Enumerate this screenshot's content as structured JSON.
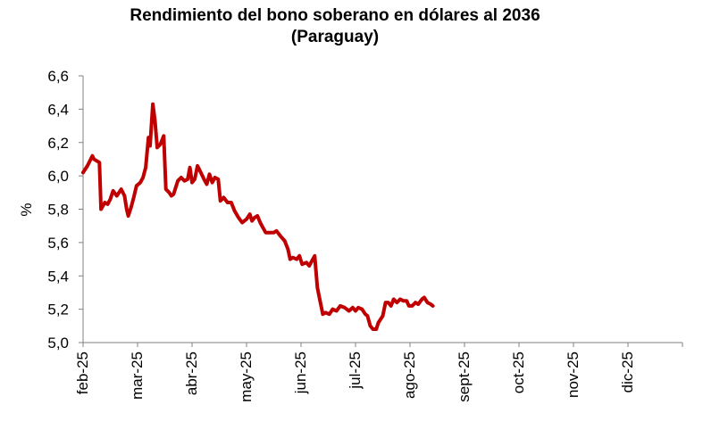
{
  "chart_data": {
    "type": "line",
    "title_line1": "Rendimiento del bono soberano en dólares al 2036",
    "title_line2": "(Paraguay)",
    "ylabel": "%",
    "xlabel": "",
    "ylim": [
      5.0,
      6.6
    ],
    "y_ticks": [
      "6,6",
      "6,4",
      "6,2",
      "6,0",
      "5,8",
      "5,6",
      "5,4",
      "5,2",
      "5,0"
    ],
    "x_ticks": [
      "feb-25",
      "mar-25",
      "abr-25",
      "may-25",
      "jun-25",
      "jul-25",
      "ago-25",
      "sept-25",
      "oct-25",
      "nov-25",
      "dic-25"
    ],
    "grid": false,
    "legend": "none",
    "line_color": "#C00000",
    "series": [
      {
        "values": [
          [
            0.0,
            6.02
          ],
          [
            0.08,
            6.06
          ],
          [
            0.17,
            6.12
          ],
          [
            0.2,
            6.1
          ],
          [
            0.25,
            6.09
          ],
          [
            0.3,
            6.08
          ],
          [
            0.33,
            5.8
          ],
          [
            0.4,
            5.84
          ],
          [
            0.45,
            5.83
          ],
          [
            0.5,
            5.86
          ],
          [
            0.55,
            5.91
          ],
          [
            0.62,
            5.88
          ],
          [
            0.7,
            5.92
          ],
          [
            0.76,
            5.88
          ],
          [
            0.8,
            5.8
          ],
          [
            0.83,
            5.76
          ],
          [
            0.88,
            5.81
          ],
          [
            0.93,
            5.87
          ],
          [
            0.98,
            5.94
          ],
          [
            1.05,
            5.96
          ],
          [
            1.1,
            5.99
          ],
          [
            1.15,
            6.05
          ],
          [
            1.2,
            6.23
          ],
          [
            1.23,
            6.18
          ],
          [
            1.28,
            6.43
          ],
          [
            1.32,
            6.33
          ],
          [
            1.36,
            6.17
          ],
          [
            1.42,
            6.19
          ],
          [
            1.48,
            6.24
          ],
          [
            1.52,
            5.92
          ],
          [
            1.58,
            5.9
          ],
          [
            1.62,
            5.88
          ],
          [
            1.66,
            5.89
          ],
          [
            1.7,
            5.93
          ],
          [
            1.74,
            5.97
          ],
          [
            1.8,
            5.99
          ],
          [
            1.86,
            5.97
          ],
          [
            1.92,
            5.98
          ],
          [
            1.96,
            6.05
          ],
          [
            2.0,
            5.96
          ],
          [
            2.05,
            5.98
          ],
          [
            2.1,
            6.06
          ],
          [
            2.16,
            6.02
          ],
          [
            2.22,
            5.98
          ],
          [
            2.27,
            5.95
          ],
          [
            2.32,
            6.01
          ],
          [
            2.37,
            5.96
          ],
          [
            2.42,
            5.99
          ],
          [
            2.48,
            5.98
          ],
          [
            2.52,
            5.85
          ],
          [
            2.58,
            5.87
          ],
          [
            2.65,
            5.84
          ],
          [
            2.72,
            5.84
          ],
          [
            2.78,
            5.79
          ],
          [
            2.85,
            5.75
          ],
          [
            2.92,
            5.72
          ],
          [
            3.0,
            5.74
          ],
          [
            3.06,
            5.77
          ],
          [
            3.1,
            5.73
          ],
          [
            3.15,
            5.75
          ],
          [
            3.2,
            5.76
          ],
          [
            3.25,
            5.72
          ],
          [
            3.3,
            5.69
          ],
          [
            3.35,
            5.66
          ],
          [
            3.42,
            5.66
          ],
          [
            3.5,
            5.66
          ],
          [
            3.55,
            5.67
          ],
          [
            3.62,
            5.64
          ],
          [
            3.7,
            5.61
          ],
          [
            3.76,
            5.56
          ],
          [
            3.8,
            5.5
          ],
          [
            3.85,
            5.51
          ],
          [
            3.92,
            5.5
          ],
          [
            3.97,
            5.52
          ],
          [
            4.02,
            5.47
          ],
          [
            4.1,
            5.48
          ],
          [
            4.15,
            5.46
          ],
          [
            4.2,
            5.49
          ],
          [
            4.25,
            5.52
          ],
          [
            4.3,
            5.33
          ],
          [
            4.35,
            5.25
          ],
          [
            4.4,
            5.17
          ],
          [
            4.45,
            5.18
          ],
          [
            4.52,
            5.17
          ],
          [
            4.58,
            5.2
          ],
          [
            4.65,
            5.19
          ],
          [
            4.72,
            5.22
          ],
          [
            4.8,
            5.21
          ],
          [
            4.88,
            5.19
          ],
          [
            4.95,
            5.21
          ],
          [
            5.0,
            5.19
          ],
          [
            5.05,
            5.21
          ],
          [
            5.12,
            5.2
          ],
          [
            5.18,
            5.17
          ],
          [
            5.22,
            5.16
          ],
          [
            5.27,
            5.1
          ],
          [
            5.32,
            5.08
          ],
          [
            5.38,
            5.08
          ],
          [
            5.42,
            5.12
          ],
          [
            5.5,
            5.16
          ],
          [
            5.55,
            5.24
          ],
          [
            5.6,
            5.24
          ],
          [
            5.65,
            5.22
          ],
          [
            5.7,
            5.26
          ],
          [
            5.76,
            5.24
          ],
          [
            5.82,
            5.26
          ],
          [
            5.88,
            5.25
          ],
          [
            5.94,
            5.25
          ],
          [
            5.98,
            5.22
          ],
          [
            6.04,
            5.22
          ],
          [
            6.1,
            5.24
          ],
          [
            6.15,
            5.23
          ],
          [
            6.22,
            5.26
          ],
          [
            6.26,
            5.27
          ],
          [
            6.32,
            5.24
          ],
          [
            6.38,
            5.23
          ],
          [
            6.42,
            5.22
          ]
        ]
      }
    ]
  }
}
